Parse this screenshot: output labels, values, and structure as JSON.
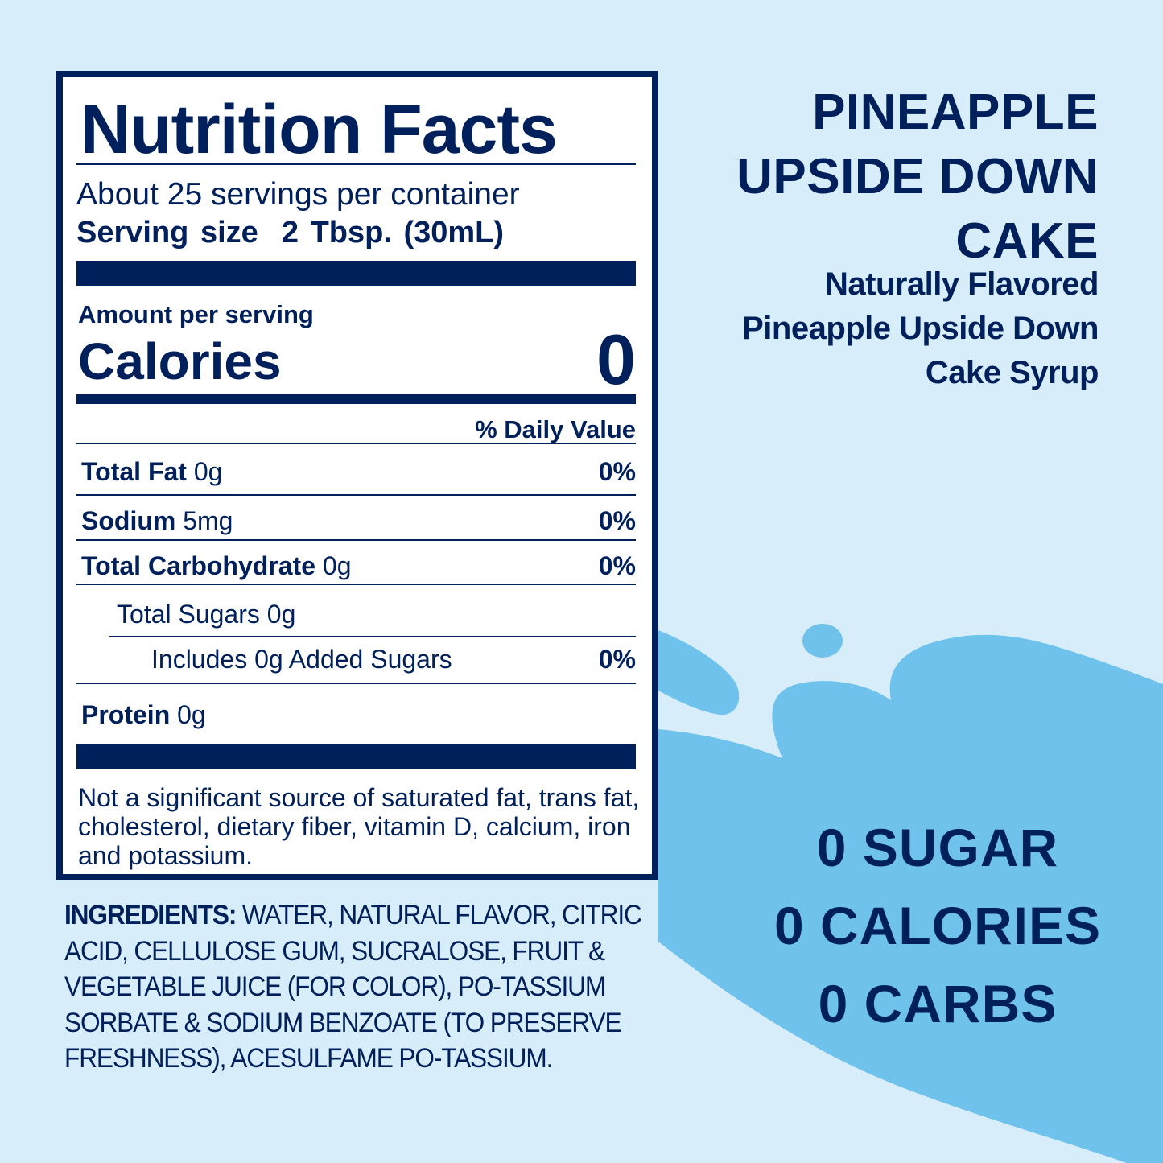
{
  "colors": {
    "background": "#d8edfa",
    "splash": "#6ec2ec",
    "navy": "#00205b"
  },
  "nutrition": {
    "title": "Nutrition Facts",
    "servings": "About 25 servings per container",
    "serving_size_label": "Serving size",
    "serving_size_value": "2 Tbsp. (30mL)",
    "amount_per_serving": "Amount per serving",
    "calories_label": "Calories",
    "calories_value": "0",
    "daily_value_header": "% Daily Value",
    "rows": [
      {
        "name": "Total Fat",
        "amount": "0g",
        "dv": "0%"
      },
      {
        "name": "Sodium",
        "amount": "5mg",
        "dv": "0%"
      },
      {
        "name": "Total Carbohydrate",
        "amount": "0g",
        "dv": "0%"
      },
      {
        "name": "Total Sugars 0g",
        "amount": "",
        "dv": ""
      },
      {
        "name": "Includes 0g Added Sugars",
        "amount": "",
        "dv": "0%"
      },
      {
        "name": "Protein",
        "amount": "0g",
        "dv": ""
      }
    ],
    "footnote": "Not a significant source of saturated fat, trans fat, cholesterol, dietary fiber, vitamin D, calcium, iron and potassium."
  },
  "ingredients": {
    "label": "INGREDIENTS:",
    "text": "WATER, NATURAL FLAVOR, CITRIC ACID, CELLULOSE GUM, SUCRALOSE, FRUIT & VEGETABLE JUICE (FOR COLOR), PO-TASSIUM SORBATE & SODIUM BENZOATE (TO PRESERVE FRESHNESS), ACESULFAME PO-TASSIUM."
  },
  "product": {
    "name_lines": [
      "PINEAPPLE",
      "UPSIDE DOWN",
      "CAKE"
    ],
    "subtitle_lines": [
      "Naturally Flavored",
      "Pineapple Upside Down",
      "Cake Syrup"
    ]
  },
  "claims": [
    "0 SUGAR",
    "0 CALORIES",
    "0 CARBS"
  ]
}
